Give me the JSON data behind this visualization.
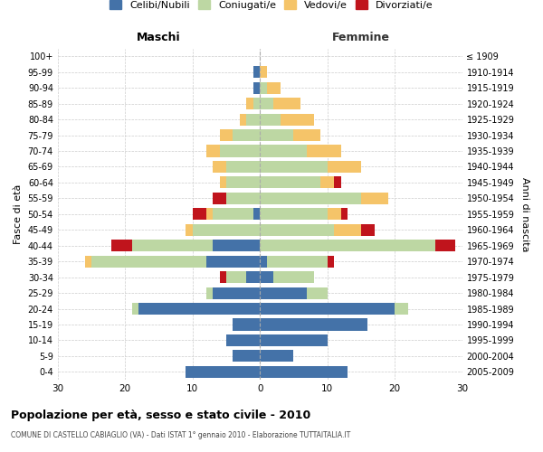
{
  "age_groups": [
    "100+",
    "95-99",
    "90-94",
    "85-89",
    "80-84",
    "75-79",
    "70-74",
    "65-69",
    "60-64",
    "55-59",
    "50-54",
    "45-49",
    "40-44",
    "35-39",
    "30-34",
    "25-29",
    "20-24",
    "15-19",
    "10-14",
    "5-9",
    "0-4"
  ],
  "birth_years": [
    "≤ 1909",
    "1910-1914",
    "1915-1919",
    "1920-1924",
    "1925-1929",
    "1930-1934",
    "1935-1939",
    "1940-1944",
    "1945-1949",
    "1950-1954",
    "1955-1959",
    "1960-1964",
    "1965-1969",
    "1970-1974",
    "1975-1979",
    "1980-1984",
    "1985-1989",
    "1990-1994",
    "1995-1999",
    "2000-2004",
    "2005-2009"
  ],
  "colors": {
    "celibe": "#4472a8",
    "coniugato": "#bdd7a3",
    "vedovo": "#f5c469",
    "divorziato": "#c0141c"
  },
  "males": {
    "celibe": [
      0,
      1,
      1,
      0,
      0,
      0,
      0,
      0,
      0,
      0,
      1,
      0,
      7,
      8,
      2,
      7,
      18,
      4,
      5,
      4,
      11
    ],
    "coniugato": [
      0,
      0,
      0,
      1,
      2,
      4,
      6,
      5,
      5,
      5,
      6,
      10,
      12,
      17,
      3,
      1,
      1,
      0,
      0,
      0,
      0
    ],
    "vedovo": [
      0,
      0,
      0,
      1,
      1,
      2,
      2,
      2,
      1,
      0,
      1,
      1,
      0,
      1,
      0,
      0,
      0,
      0,
      0,
      0,
      0
    ],
    "divorziato": [
      0,
      0,
      0,
      0,
      0,
      0,
      0,
      0,
      0,
      2,
      2,
      0,
      3,
      0,
      1,
      0,
      0,
      0,
      0,
      0,
      0
    ]
  },
  "females": {
    "nubile": [
      0,
      0,
      0,
      0,
      0,
      0,
      0,
      0,
      0,
      0,
      0,
      0,
      0,
      1,
      2,
      7,
      20,
      16,
      10,
      5,
      13
    ],
    "coniugata": [
      0,
      0,
      1,
      2,
      3,
      5,
      7,
      10,
      9,
      15,
      10,
      11,
      26,
      9,
      6,
      3,
      2,
      0,
      0,
      0,
      0
    ],
    "vedova": [
      0,
      1,
      2,
      4,
      5,
      4,
      5,
      5,
      2,
      4,
      2,
      4,
      0,
      0,
      0,
      0,
      0,
      0,
      0,
      0,
      0
    ],
    "divorziata": [
      0,
      0,
      0,
      0,
      0,
      0,
      0,
      0,
      1,
      0,
      1,
      2,
      3,
      1,
      0,
      0,
      0,
      0,
      0,
      0,
      0
    ]
  },
  "xlim": 30,
  "title": "Popolazione per età, sesso e stato civile - 2010",
  "subtitle": "COMUNE DI CASTELLO CABIAGLIO (VA) - Dati ISTAT 1° gennaio 2010 - Elaborazione TUTTAITALIA.IT",
  "ylabel_left": "Fasce di età",
  "ylabel_right": "Anni di nascita",
  "xlabel_left": "Maschi",
  "xlabel_right": "Femmine",
  "legend_labels": [
    "Celibi/Nubili",
    "Coniugati/e",
    "Vedovi/e",
    "Divorziati/e"
  ],
  "bar_height": 0.75,
  "bg_color": "#ffffff",
  "grid_color": "#cccccc"
}
